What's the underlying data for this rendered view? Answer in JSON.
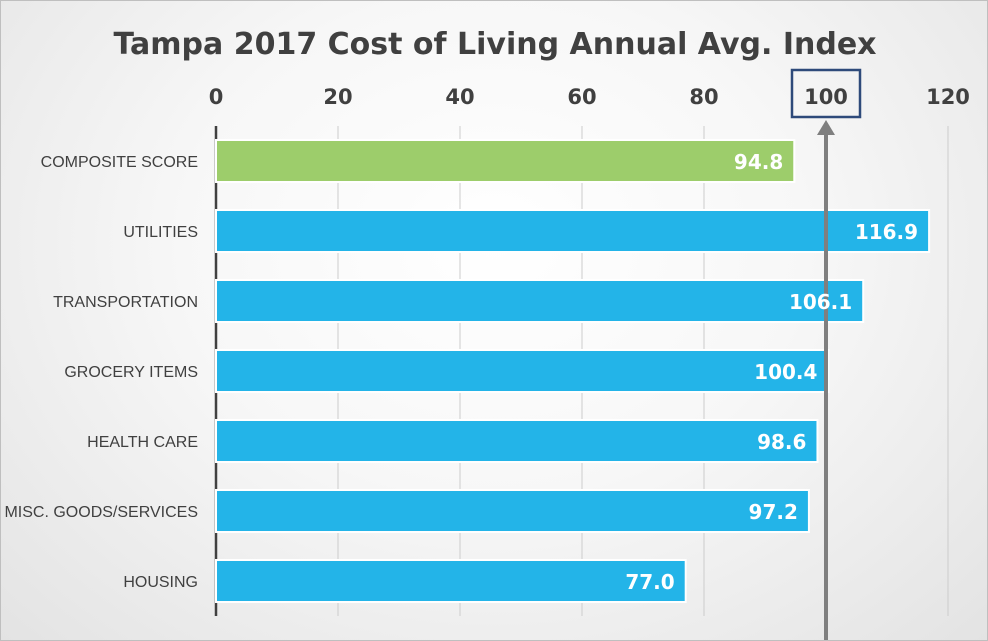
{
  "chart_data": {
    "type": "bar",
    "orientation": "horizontal",
    "title": "Tampa 2017 Cost of Living Annual Avg. Index",
    "categories": [
      "COMPOSITE SCORE",
      "UTILITIES",
      "TRANSPORTATION",
      "GROCERY ITEMS",
      "HEALTH CARE",
      "MISC. GOODS/SERVICES",
      "HOUSING"
    ],
    "values": [
      94.8,
      116.9,
      106.1,
      100.4,
      98.6,
      97.2,
      77.0
    ],
    "value_labels": [
      "94.8",
      "116.9",
      "106.1",
      "100.4",
      "98.6",
      "97.2",
      "77.0"
    ],
    "xticks": [
      "0",
      "20",
      "40",
      "60",
      "80",
      "100",
      "120"
    ],
    "xlim": [
      0,
      120
    ],
    "xaxis_position": "top",
    "grid": true,
    "legend": "none",
    "highlighted_tick": "100",
    "reference_line": 100,
    "colors": {
      "composite_bar": "#9dcd6b",
      "bars": "#23b4e8",
      "bar_border": "#ffffff",
      "reference_arrow": "#7f7f7f",
      "highlight_box": "#2e4a7a",
      "axis_line": "#404040",
      "grid": "#cccccc",
      "value_text": "#ffffff"
    }
  }
}
